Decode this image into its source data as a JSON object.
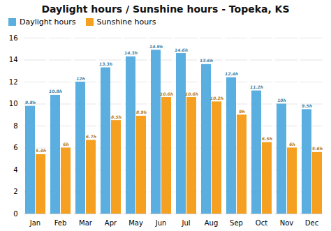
{
  "chart_data": {
    "type": "bar",
    "title": "Daylight hours / Sunshine hours - Topeka, KS",
    "categories": [
      "Jan",
      "Feb",
      "Mar",
      "Apr",
      "May",
      "Jun",
      "Jul",
      "Aug",
      "Sep",
      "Oct",
      "Nov",
      "Dec"
    ],
    "series": [
      {
        "name": "Daylight hours",
        "color": "#5baee0",
        "values": [
          9.8,
          10.8,
          12.0,
          13.3,
          14.3,
          14.9,
          14.6,
          13.6,
          12.4,
          11.2,
          10.0,
          9.5
        ],
        "value_labels": [
          "9.8h",
          "10.8h",
          "12h",
          "13.3h",
          "14.3h",
          "14.9h",
          "14.6h",
          "13.6h",
          "12.4h",
          "11.2h",
          "10h",
          "9.5h"
        ]
      },
      {
        "name": "Sunshine hours",
        "color": "#f5a020",
        "values": [
          5.4,
          6.0,
          6.7,
          8.5,
          8.9,
          10.6,
          10.6,
          10.2,
          9.0,
          6.5,
          6.0,
          5.6
        ],
        "value_labels": [
          "5.4h",
          "6h",
          "6.7h",
          "8.5h",
          "8.9h",
          "10.6h",
          "10.6h",
          "10.2h",
          "9h",
          "6.5h",
          "6h",
          "5.6h"
        ]
      }
    ],
    "ylim": [
      0,
      16
    ],
    "yticks": [
      0,
      2,
      4,
      6,
      8,
      10,
      12,
      14,
      16
    ],
    "grid": true,
    "legend": "upper left",
    "data_labels": true
  }
}
